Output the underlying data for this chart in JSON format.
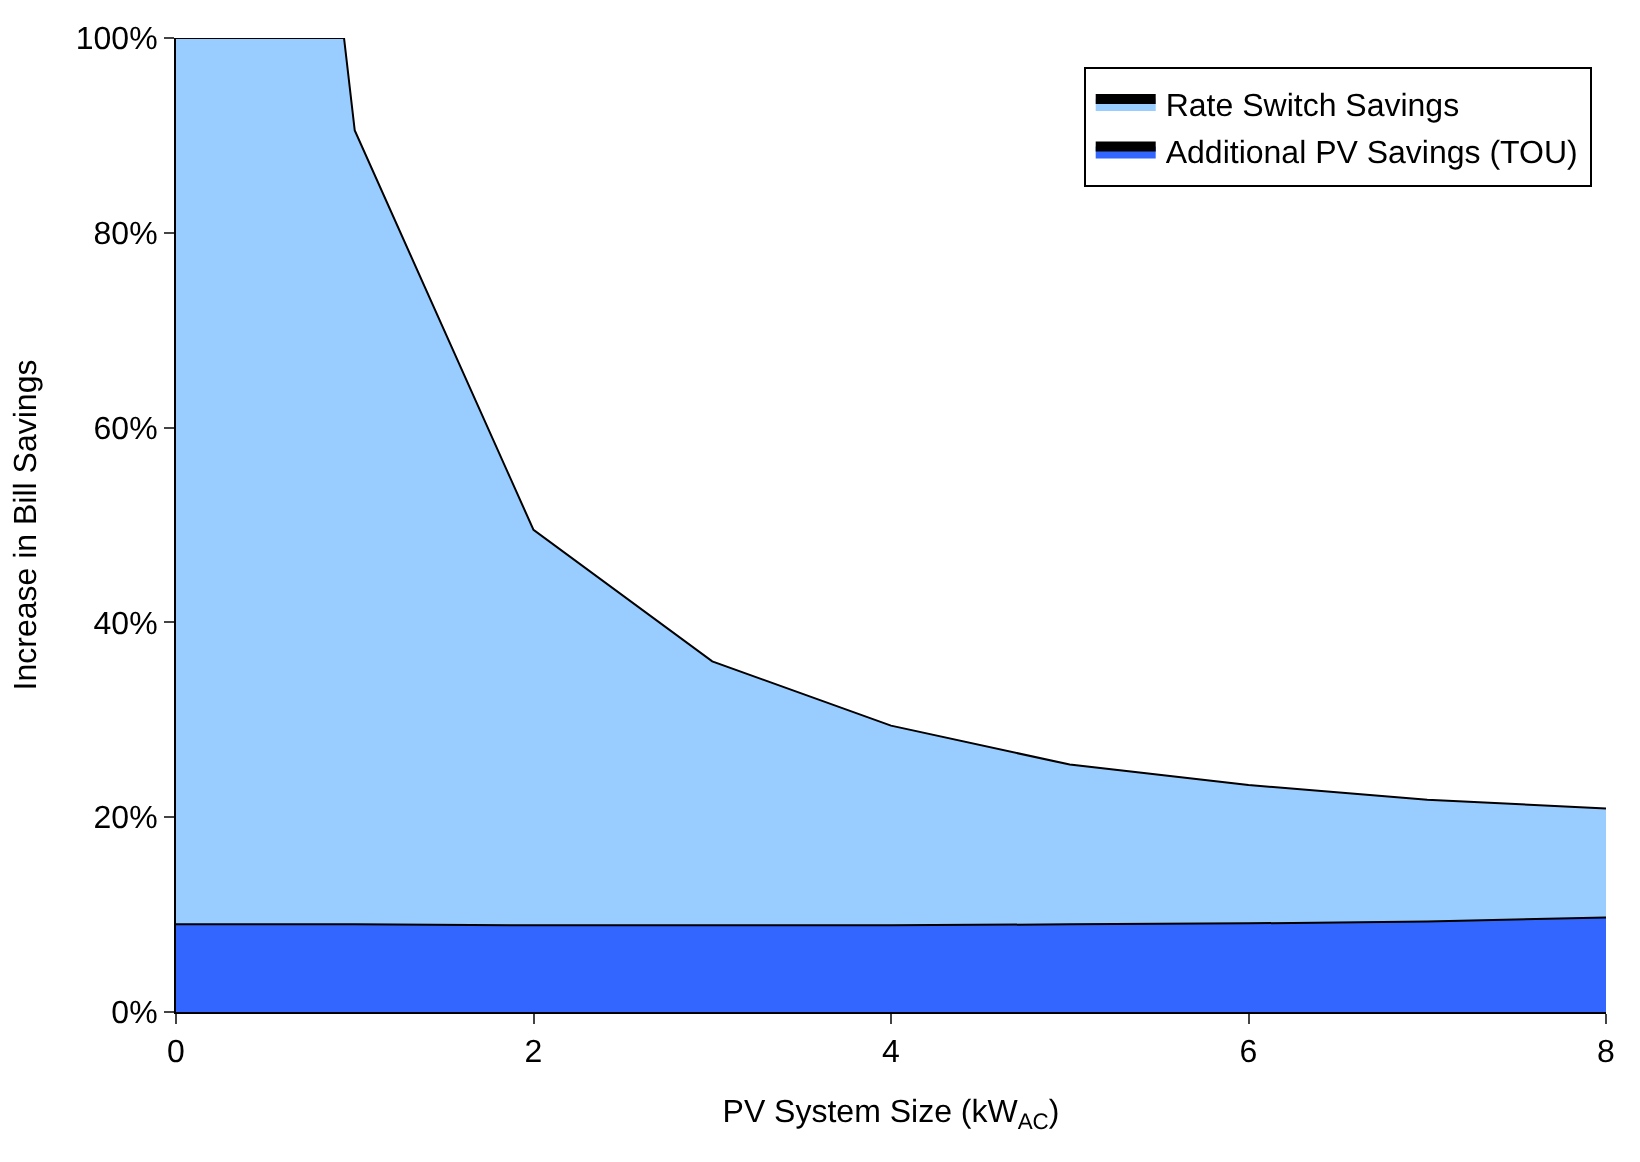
{
  "chart_data": {
    "type": "area",
    "stacked": true,
    "xlabel": "PV System Size (kW$_{AC}$)",
    "ylabel": "Increase in Bill Savings",
    "x": [
      0,
      0.94,
      1,
      2,
      3,
      4,
      5,
      6,
      7,
      8
    ],
    "series": [
      {
        "name": "Additional PV Savings (TOU)",
        "color": "#3366ff",
        "values": [
          9.0,
          9.0,
          9.0,
          8.9,
          8.9,
          8.9,
          9.0,
          9.1,
          9.3,
          9.7
        ]
      },
      {
        "name": "Rate Switch Savings",
        "color": "#99ccff",
        "values": [
          91.0,
          91.0,
          81.5,
          40.6,
          27.1,
          20.5,
          16.4,
          14.2,
          12.5,
          11.2
        ]
      }
    ],
    "xlim": [
      0,
      8
    ],
    "xticks": [
      0,
      2,
      4,
      6,
      8
    ],
    "ylim": [
      0,
      100
    ],
    "yticks": [
      {
        "value": 0,
        "label": "0%"
      },
      {
        "value": 20,
        "label": "20%"
      },
      {
        "value": 40,
        "label": "40%"
      },
      {
        "value": 60,
        "label": "60%"
      },
      {
        "value": 80,
        "label": "80%"
      },
      {
        "value": 100,
        "label": "100%"
      }
    ],
    "legend": "top right"
  }
}
